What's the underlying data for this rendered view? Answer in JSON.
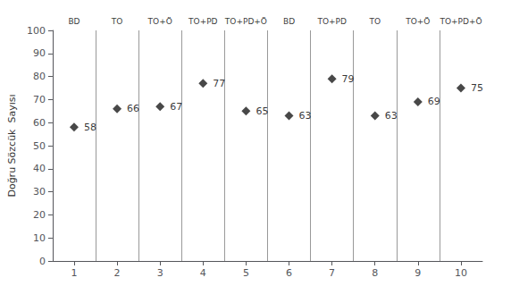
{
  "chart_data": {
    "type": "scatter",
    "ylabel": "Doğru Sözcük  Sayısı",
    "x": [
      1,
      2,
      3,
      4,
      5,
      6,
      7,
      8,
      9,
      10
    ],
    "values": [
      58,
      66,
      67,
      77,
      65,
      63,
      79,
      63,
      69,
      75
    ],
    "data_labels": true,
    "color": "#1a1a1a",
    "marker": "diamond",
    "xlim": [
      0.5,
      10.5
    ],
    "xticks": [
      1,
      2,
      3,
      4,
      5,
      6,
      7,
      8,
      9,
      10
    ],
    "ylim": [
      0,
      100
    ],
    "yticks": [
      0,
      10,
      20,
      30,
      40,
      50,
      60,
      70,
      80,
      90,
      100
    ],
    "grid": false,
    "annotations": [
      {
        "text": "BD",
        "x": 1.0
      },
      {
        "text": "TO",
        "x": 2.0
      },
      {
        "text": "TO+Ö",
        "x": 3.0
      },
      {
        "text": "TO+PD",
        "x": 4.0
      },
      {
        "text": "TO+PD+Ö",
        "x": 5.0
      },
      {
        "text": "BD",
        "x": 6.0
      },
      {
        "text": "TO+PD",
        "x": 7.0
      },
      {
        "text": "TO",
        "x": 8.0
      },
      {
        "text": "TO+Ö",
        "x": 9.0
      },
      {
        "text": "TO+PD+Ö",
        "x": 10.0
      }
    ],
    "vlines": [
      1.5,
      2.5,
      3.5,
      4.5,
      5.5,
      6.5,
      7.5,
      8.5,
      9.5
    ]
  }
}
